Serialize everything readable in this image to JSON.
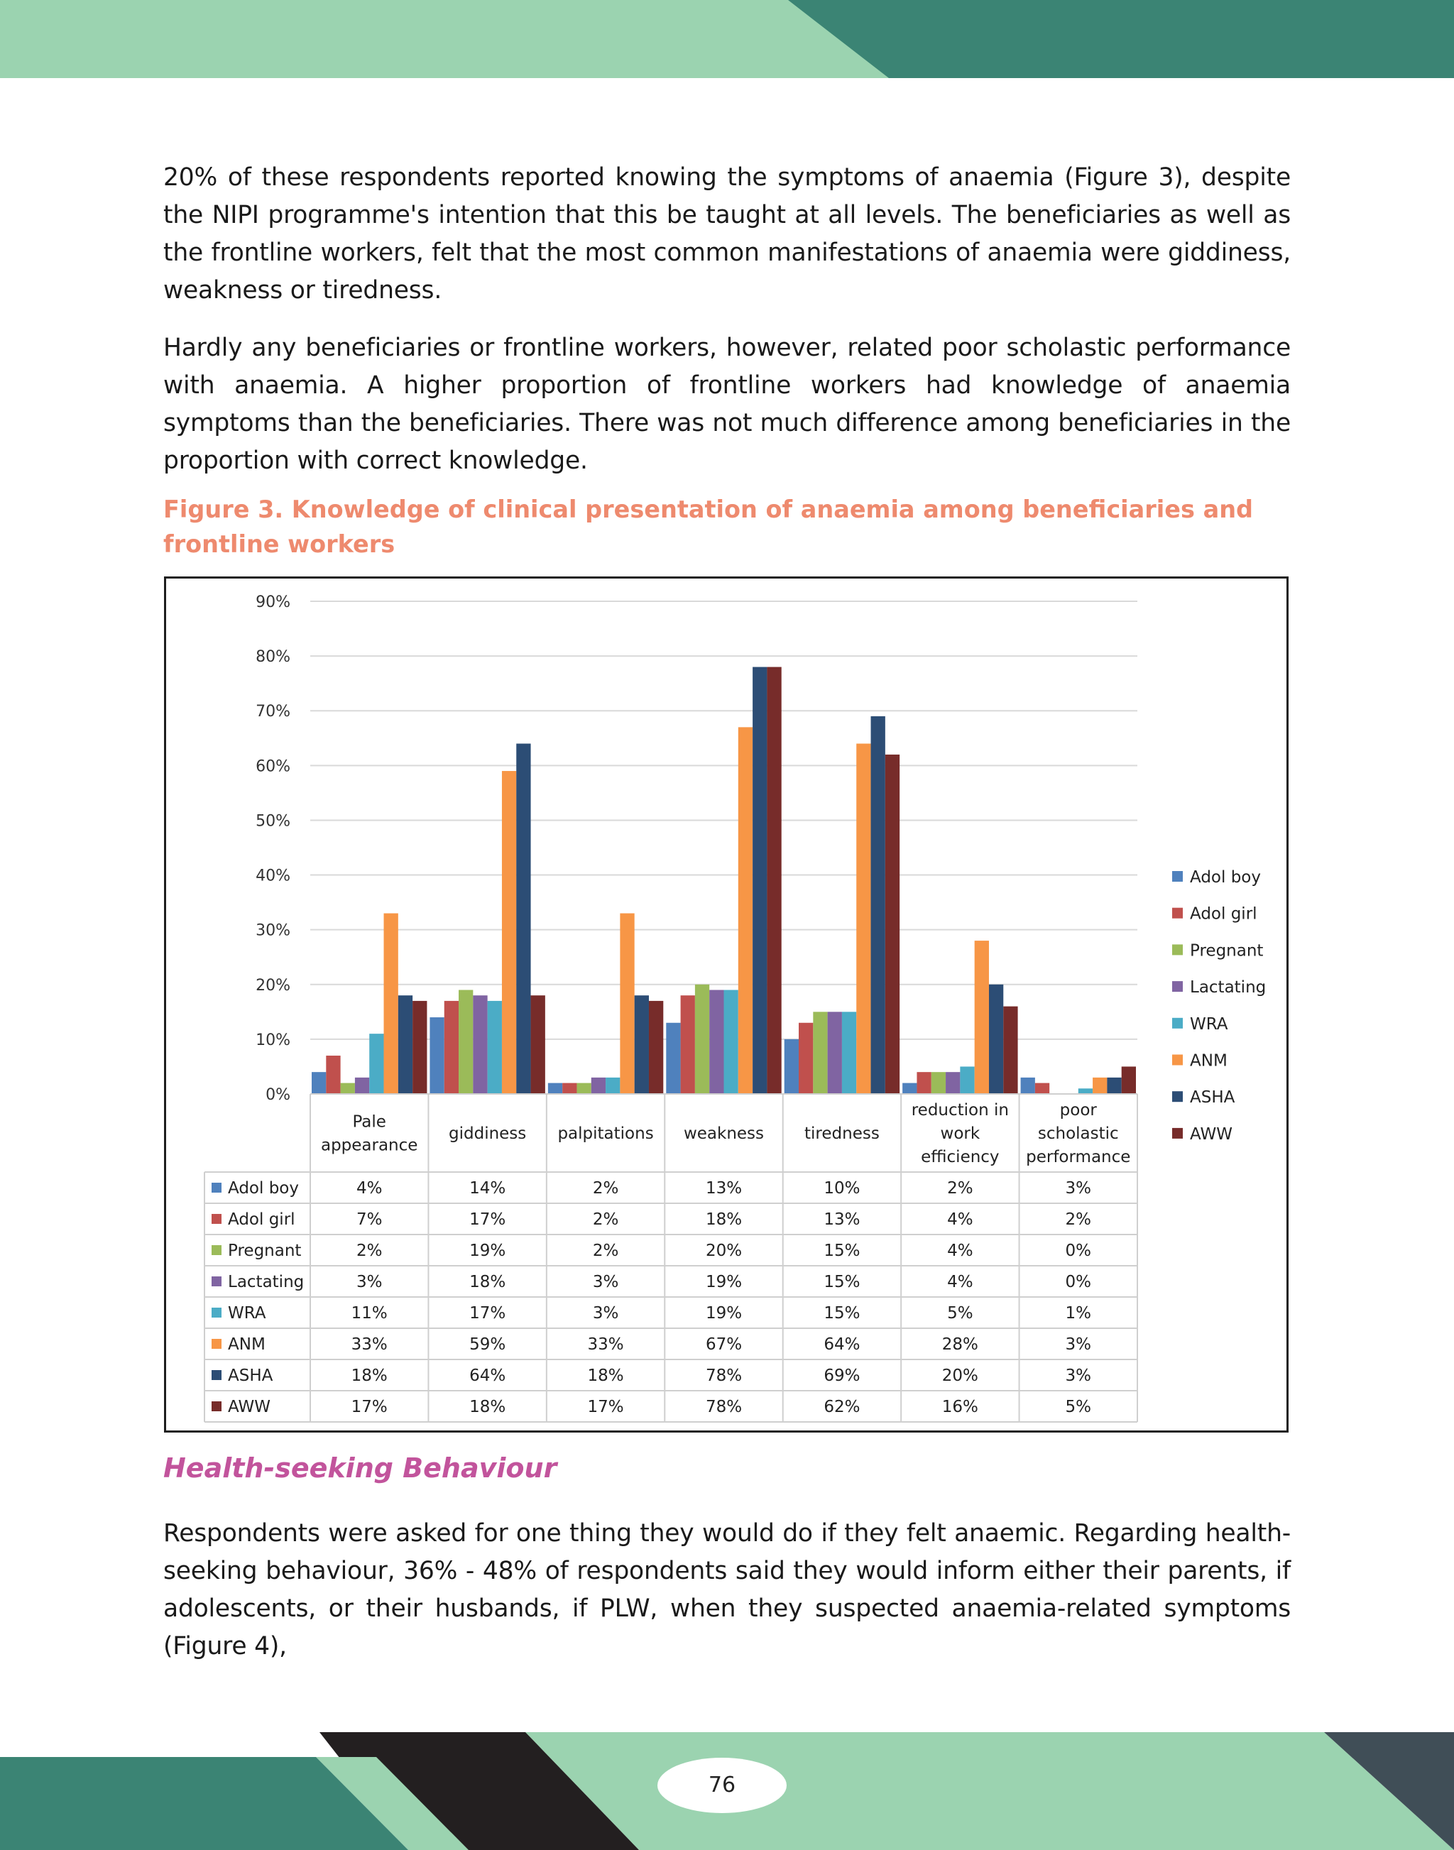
{
  "body": {
    "paragraph_1": "20% of these respondents reported knowing the symptoms of anaemia (Figure 3), despite the NIPI programme's intention that this be taught at all levels. The beneficiaries as well as the frontline workers, felt that the most common manifestations of anaemia were giddiness, weakness or tiredness.",
    "paragraph_2": "Hardly any beneficiaries or frontline workers, however, related poor scholastic performance with anaemia. A higher proportion of frontline workers had knowledge of anaemia symptoms than the beneficiaries. There was not much difference among beneficiaries in the proportion with correct knowledge.",
    "figure_caption": "Figure 3. Knowledge of clinical presentation of anaemia among beneficiaries and frontline workers",
    "section_heading": "Health-seeking Behaviour",
    "paragraph_3": "Respondents were asked for one thing they would do if they felt anaemic. Regarding health-seeking behaviour, 36% - 48% of respondents said they would inform either their parents, if adolescents, or their husbands, if PLW, when they suspected anaemia-related symptoms (Figure 4),",
    "page_number": "76"
  },
  "colors": {
    "deco_light_green": "#9bd3b0",
    "deco_teal": "#3b8474",
    "deco_black": "#231f20",
    "deco_slate": "#404e57"
  },
  "chart_data": {
    "type": "bar",
    "categories": [
      [
        "Pale",
        "appearance"
      ],
      [
        "giddiness"
      ],
      [
        "palpitations"
      ],
      [
        "weakness"
      ],
      [
        "tiredness"
      ],
      [
        "reduction in",
        "work",
        "efficiency"
      ],
      [
        "poor",
        "scholastic",
        "performance"
      ]
    ],
    "ylim": [
      0,
      90
    ],
    "yticks": [
      0,
      10,
      20,
      30,
      40,
      50,
      60,
      70,
      80,
      90
    ],
    "ytick_labels": [
      "0%",
      "10%",
      "20%",
      "30%",
      "40%",
      "50%",
      "60%",
      "70%",
      "80%",
      "90%"
    ],
    "grid": true,
    "legend_position": "right",
    "data_table": true,
    "series": [
      {
        "name": "Adol boy",
        "color": "#4f81bd",
        "values": [
          4,
          14,
          2,
          13,
          10,
          2,
          3
        ],
        "labels": [
          "4%",
          "14%",
          "2%",
          "13%",
          "10%",
          "2%",
          "3%"
        ]
      },
      {
        "name": "Adol girl",
        "color": "#c0504d",
        "values": [
          7,
          17,
          2,
          18,
          13,
          4,
          2
        ],
        "labels": [
          "7%",
          "17%",
          "2%",
          "18%",
          "13%",
          "4%",
          "2%"
        ]
      },
      {
        "name": "Pregnant",
        "color": "#9bbb59",
        "values": [
          2,
          19,
          2,
          20,
          15,
          4,
          0
        ],
        "labels": [
          "2%",
          "19%",
          "2%",
          "20%",
          "15%",
          "4%",
          "0%"
        ]
      },
      {
        "name": "Lactating",
        "color": "#8064a2",
        "values": [
          3,
          18,
          3,
          19,
          15,
          4,
          0
        ],
        "labels": [
          "3%",
          "18%",
          "3%",
          "19%",
          "15%",
          "4%",
          "0%"
        ]
      },
      {
        "name": "WRA",
        "color": "#4bacc6",
        "values": [
          11,
          17,
          3,
          19,
          15,
          5,
          1
        ],
        "labels": [
          "11%",
          "17%",
          "3%",
          "19%",
          "15%",
          "5%",
          "1%"
        ]
      },
      {
        "name": "ANM",
        "color": "#f79646",
        "values": [
          33,
          59,
          33,
          67,
          64,
          28,
          3
        ],
        "labels": [
          "33%",
          "59%",
          "33%",
          "67%",
          "64%",
          "28%",
          "3%"
        ]
      },
      {
        "name": "ASHA",
        "color": "#2c4d75",
        "values": [
          18,
          64,
          18,
          78,
          69,
          20,
          3
        ],
        "labels": [
          "18%",
          "64%",
          "18%",
          "78%",
          "69%",
          "20%",
          "3%"
        ]
      },
      {
        "name": "AWW",
        "color": "#772c2a",
        "values": [
          17,
          18,
          17,
          78,
          62,
          16,
          5
        ],
        "labels": [
          "17%",
          "18%",
          "17%",
          "78%",
          "62%",
          "16%",
          "5%"
        ]
      }
    ]
  }
}
